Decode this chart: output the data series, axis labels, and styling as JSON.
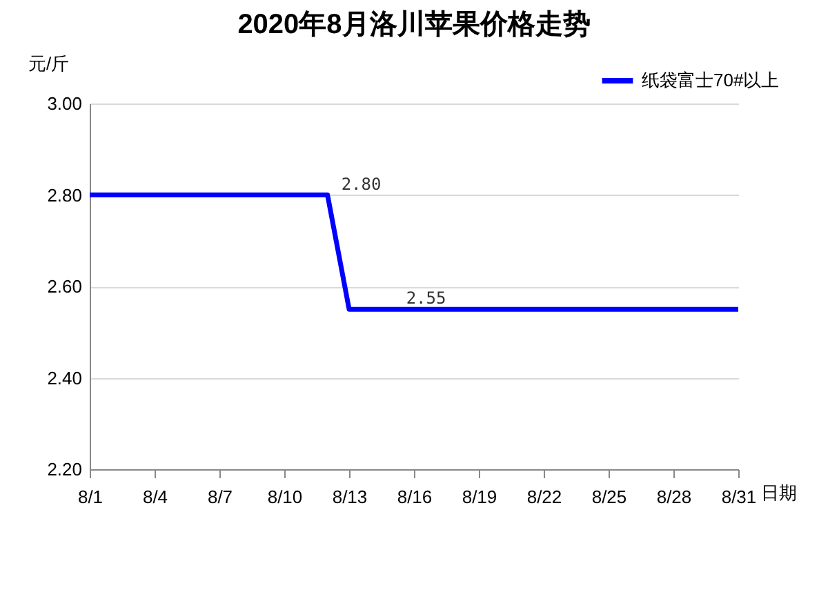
{
  "chart_data": {
    "type": "line",
    "title": "2020年8月洛川苹果价格走势",
    "ylabel": "元/斤",
    "xlabel": "日期",
    "categories": [
      "8/1",
      null,
      null,
      "8/4",
      null,
      null,
      "8/7",
      null,
      null,
      "8/10",
      null,
      null,
      "8/13",
      null,
      null,
      "8/16",
      null,
      null,
      "8/19",
      null,
      null,
      "8/22",
      null,
      null,
      "8/25",
      null,
      null,
      "8/28",
      null,
      null,
      "8/31"
    ],
    "series": [
      {
        "name": "纸袋富士70#以上",
        "color": "#0000ff",
        "values": [
          2.8,
          2.8,
          2.8,
          2.8,
          2.8,
          2.8,
          2.8,
          2.8,
          2.8,
          2.8,
          2.8,
          2.8,
          2.55,
          2.55,
          2.55,
          2.55,
          2.55,
          2.55,
          2.55,
          2.55,
          2.55,
          2.55,
          2.55,
          2.55,
          2.55,
          2.55,
          2.55,
          2.55,
          2.55,
          2.55,
          2.55
        ],
        "value_labels": [
          null,
          null,
          null,
          null,
          null,
          null,
          null,
          null,
          null,
          null,
          null,
          "2.80",
          null,
          null,
          "2.55",
          null,
          null,
          null,
          null,
          null,
          null,
          null,
          null,
          null,
          null,
          null,
          null,
          null,
          null,
          null,
          null
        ]
      }
    ],
    "ylim": [
      2.2,
      3.0
    ],
    "yticks": [
      {
        "value": 2.2,
        "label": "2.20"
      },
      {
        "value": 2.4,
        "label": "2.40"
      },
      {
        "value": 2.6,
        "label": "2.60"
      },
      {
        "value": 2.8,
        "label": "2.80"
      },
      {
        "value": 3.0,
        "label": "3.00"
      }
    ],
    "grid": "y",
    "legend": "top right",
    "marker": "none",
    "line_style": "solid"
  }
}
